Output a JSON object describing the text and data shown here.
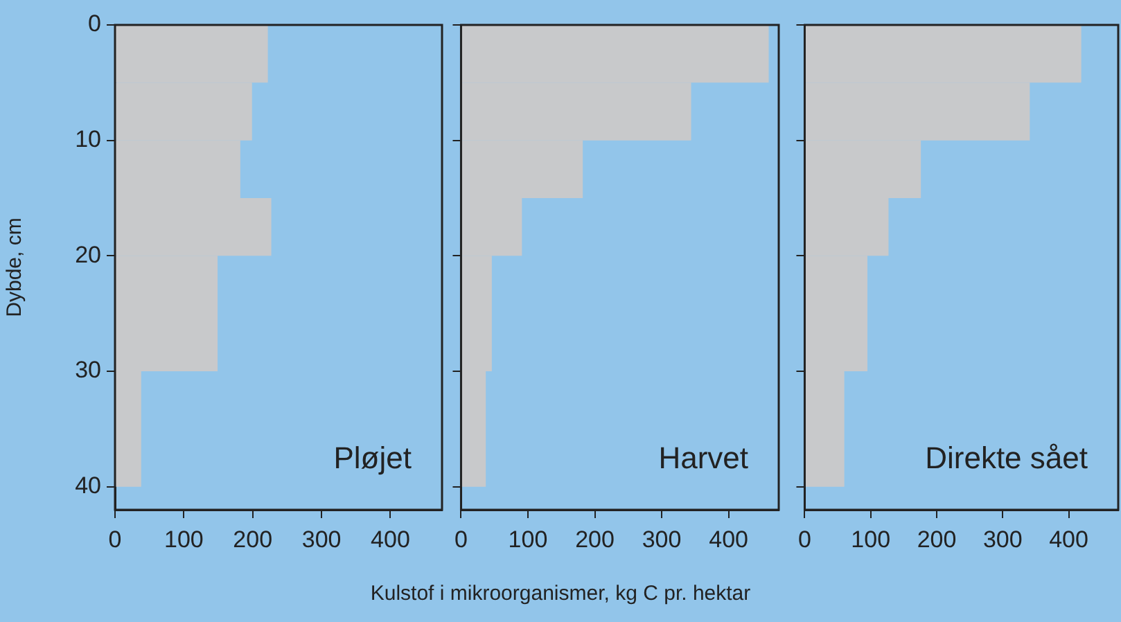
{
  "chart_data": [
    {
      "type": "histogram",
      "orientation": "horizontal",
      "bins": [
        0,
        5,
        10,
        15,
        20,
        30,
        40
      ],
      "values": [
        222,
        199,
        182,
        227,
        149,
        38
      ],
      "color": "#c8c9cb",
      "xlim": [
        0,
        475
      ],
      "xticks": [
        0,
        100,
        200,
        300,
        400
      ],
      "ylim": [
        42,
        0
      ],
      "yticks": [
        0,
        10,
        20,
        30,
        40
      ],
      "ylabel": "Dybde, cm",
      "annotations": [
        "Pløjet"
      ]
    },
    {
      "type": "histogram",
      "orientation": "horizontal",
      "bins": [
        0,
        5,
        10,
        15,
        20,
        30,
        40
      ],
      "values": [
        460,
        344,
        182,
        91,
        46,
        37
      ],
      "color": "#c8c9cb",
      "xlim": [
        0,
        475
      ],
      "xticks": [
        0,
        100,
        200,
        300,
        400
      ],
      "ylim": [
        42,
        0
      ],
      "yticks": [
        0,
        10,
        20,
        30,
        40
      ],
      "tick_labels": "x",
      "xlabel": "Kulstof i mikroorganismer, kg C pr. hektar",
      "annotations": [
        "Harvet"
      ]
    },
    {
      "type": "histogram",
      "orientation": "horizontal",
      "bins": [
        0,
        5,
        10,
        15,
        20,
        30,
        40
      ],
      "values": [
        419,
        341,
        176,
        127,
        95,
        60
      ],
      "color": "#c8c9cb",
      "xlim": [
        0,
        475
      ],
      "xticks": [
        0,
        100,
        200,
        300,
        400
      ],
      "ylim": [
        42,
        0
      ],
      "yticks": [
        0,
        10,
        20,
        30,
        40
      ],
      "tick_labels": "x",
      "annotations": [
        "Direkte sået"
      ]
    }
  ]
}
